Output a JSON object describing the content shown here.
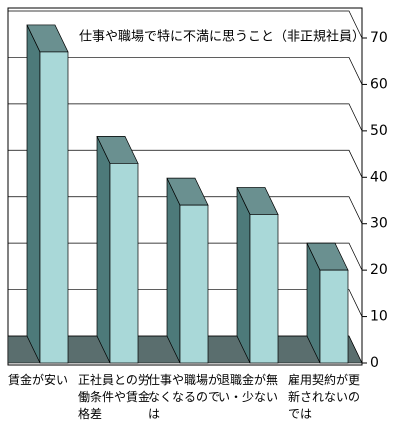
{
  "chart_data": {
    "type": "bar3d",
    "title": "仕事や職場で特に不満に思うこと（非正規社員）",
    "categories": [
      "賃金が安い",
      "正社員との労働条件や賃金格差",
      "仕事や職場がなくなるのでは",
      "退職金が無い・少ない",
      "雇用契約が更新されないのでは"
    ],
    "values": [
      67,
      43,
      34,
      32,
      20
    ],
    "color": "#a9d8d8",
    "ylim": [
      0,
      70
    ],
    "yticks": [
      0,
      10,
      20,
      30,
      40,
      50,
      60,
      70
    ],
    "grid": true
  }
}
